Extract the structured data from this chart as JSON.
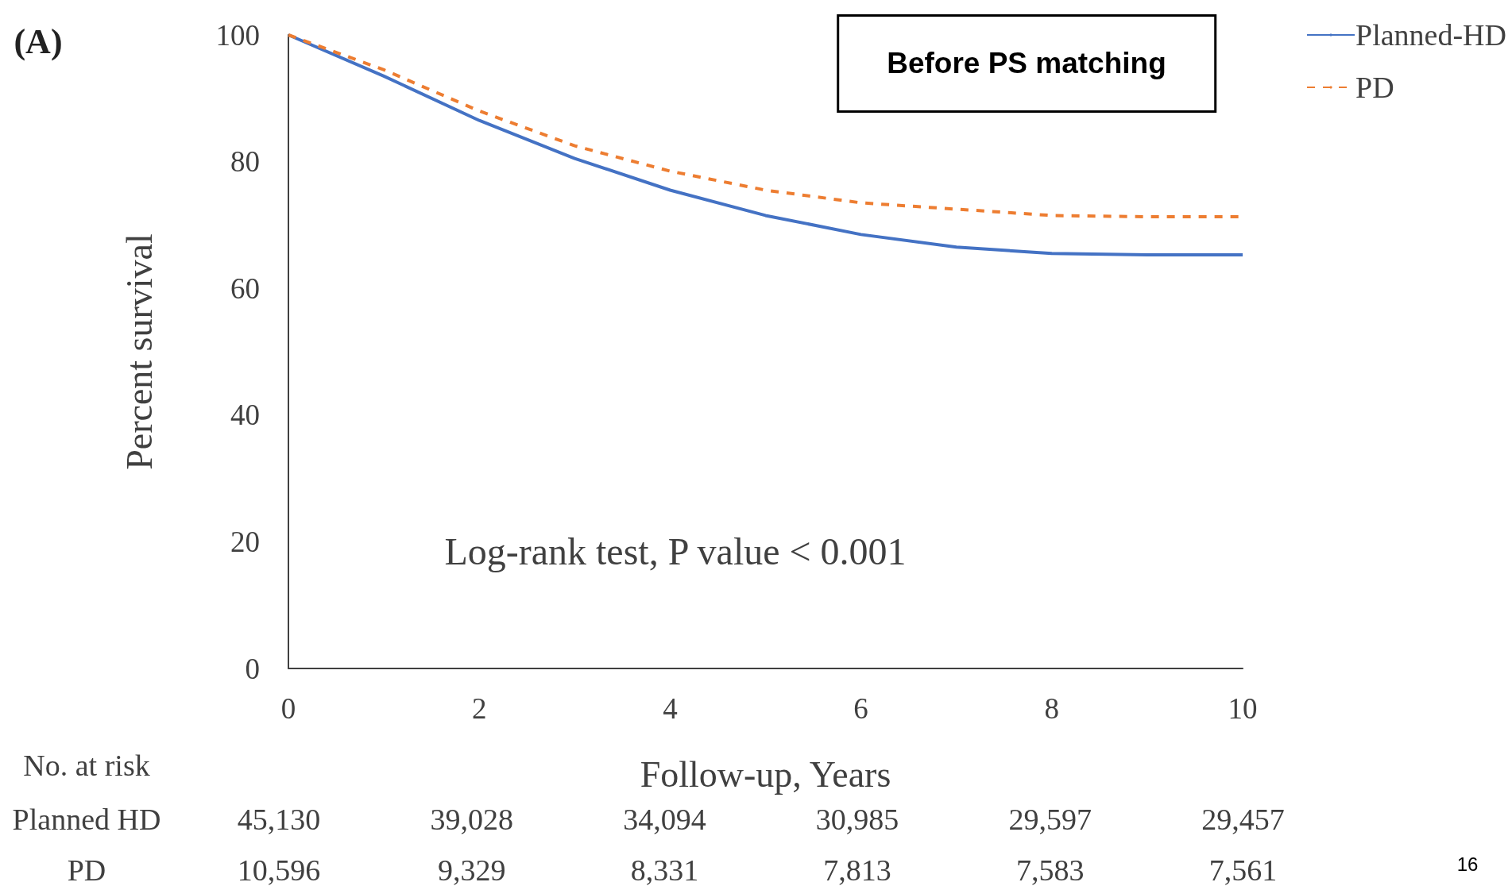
{
  "chart_data": {
    "type": "line",
    "xlabel": "Follow-up, Years",
    "ylabel": "Percent survival",
    "annotations": [
      "(A)",
      "Before PS matching",
      "Log-rank test, P value < 0.001",
      "No. at risk",
      "Planned HD",
      "45,130",
      "39,028",
      "34,094",
      "30,985",
      "29,597",
      "29,457",
      "PD",
      "10,596",
      "9,329",
      "8,331",
      "7,813",
      "7,583",
      "7,561",
      "16"
    ],
    "x": [
      0,
      1,
      2,
      3,
      4,
      5,
      6,
      7,
      8,
      9,
      10
    ],
    "series": [
      {
        "name": "Planned-HD",
        "color": "#4472c4",
        "line_style": "solid",
        "values": [
          100,
          93.5,
          86.5,
          80.5,
          75.5,
          71.5,
          68.5,
          66.5,
          65.5,
          65.3,
          65.3
        ]
      },
      {
        "name": "PD",
        "color": "#ed7d31",
        "line_style": "dashed",
        "values": [
          100,
          94.5,
          88,
          82.5,
          78.5,
          75.5,
          73.5,
          72.5,
          71.5,
          71.3,
          71.3
        ]
      }
    ],
    "xlim": [
      0,
      10
    ],
    "xticks": [
      0,
      2,
      4,
      6,
      8,
      10
    ],
    "ylim": [
      0,
      100
    ],
    "yticks": [
      0,
      20,
      40,
      60,
      80,
      100
    ],
    "grid": false,
    "legend": "top right",
    "marker": "none"
  }
}
